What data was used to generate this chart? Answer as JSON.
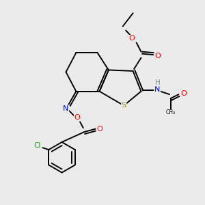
{
  "bg_color": "#ebebeb",
  "atom_colors": {
    "C": "#000000",
    "H": "#7a9090",
    "N": "#0000ff",
    "O": "#ff0000",
    "S": "#999900",
    "Cl": "#00aa00"
  },
  "bond_color": "#000000",
  "bond_width": 1.4
}
